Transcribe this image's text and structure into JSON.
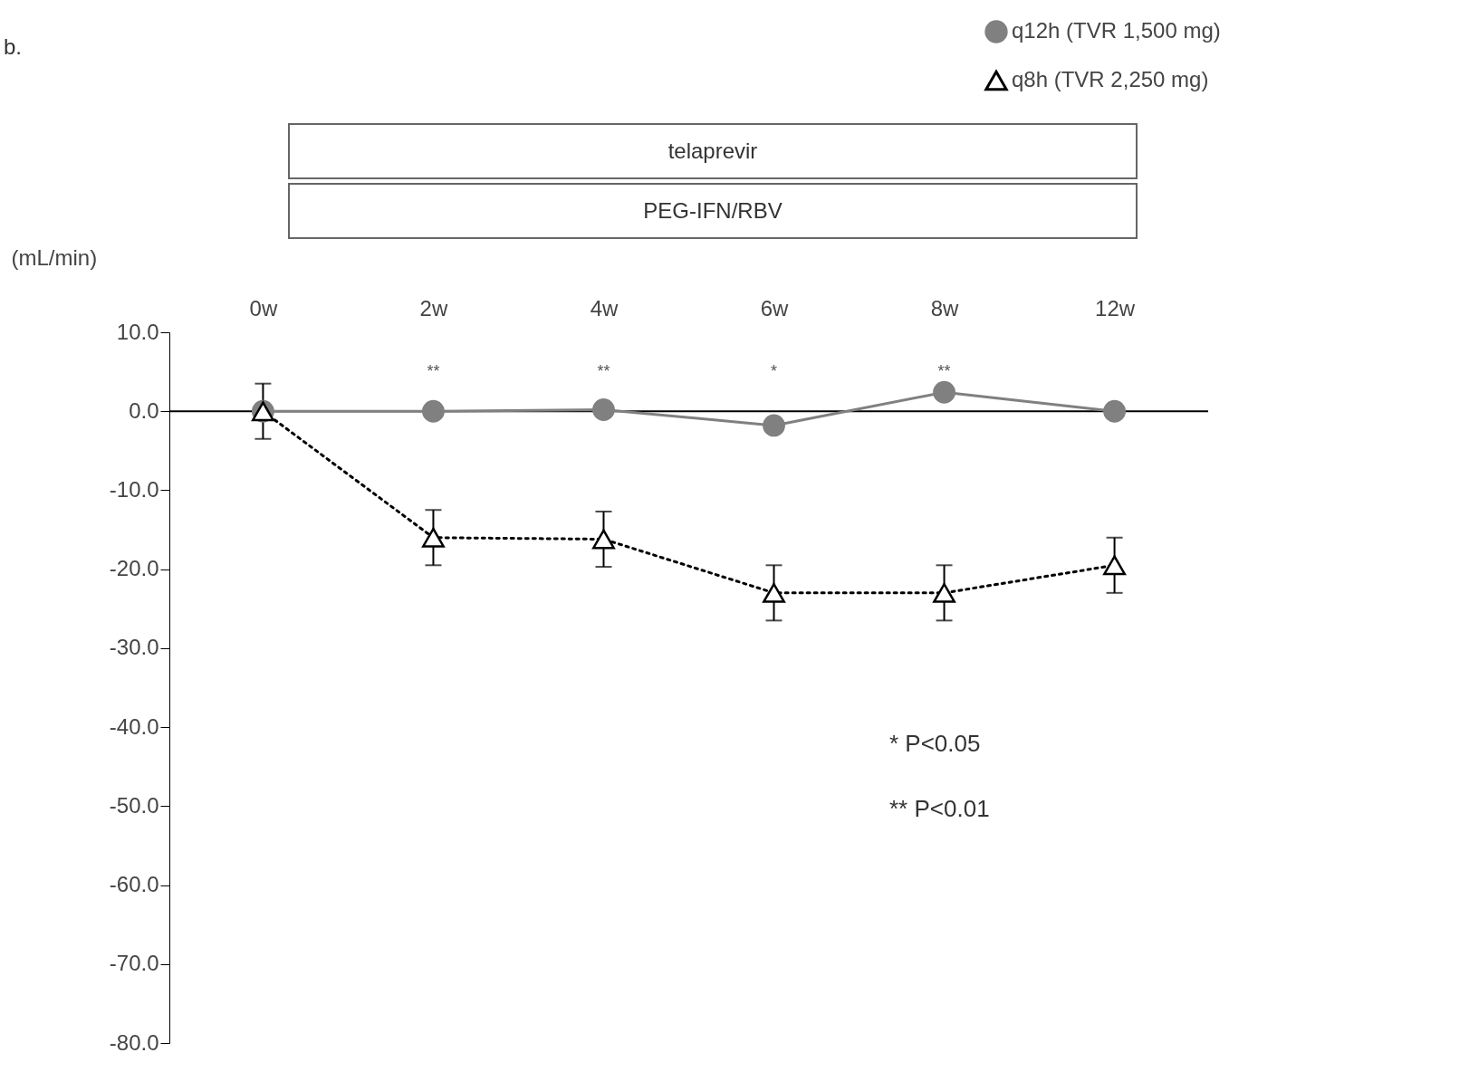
{
  "chart_data": {
    "type": "line",
    "ylabel": "(mL/min)",
    "categories": [
      "0w",
      "2w",
      "4w",
      "6w",
      "8w",
      "12w"
    ],
    "ylim": [
      -80,
      10
    ],
    "yticks": [
      {
        "value": 10,
        "label": "10.0"
      },
      {
        "value": 0,
        "label": "0.0"
      },
      {
        "value": -10,
        "label": "-10.0"
      },
      {
        "value": -20,
        "label": "-20.0"
      },
      {
        "value": -30,
        "label": "-30.0"
      },
      {
        "value": -40,
        "label": "-40.0"
      },
      {
        "value": -50,
        "label": "-50.0"
      },
      {
        "value": -60,
        "label": "-60.0"
      },
      {
        "value": -70,
        "label": "-70.0"
      },
      {
        "value": -80,
        "label": "-80.0"
      }
    ],
    "series": [
      {
        "name": "q12h (TVR 1,500 mg)",
        "color": "#808080",
        "marker": "circle",
        "line_style": "solid",
        "values": [
          0,
          0,
          0.2,
          -1.8,
          2.4,
          0
        ],
        "errors": [
          3.5,
          null,
          null,
          null,
          null,
          null
        ]
      },
      {
        "name": "q8h (TVR 2,250 mg)",
        "color": "#000000",
        "marker": "triangle",
        "line_style": "dotted",
        "values": [
          0,
          -16,
          -16.2,
          -23,
          -23,
          -19.5
        ],
        "errors": [
          null,
          3.5,
          3.5,
          3.5,
          3.5,
          3.5
        ]
      }
    ],
    "ref_lines": [
      {
        "axis": "y",
        "value": 0,
        "color": "#000000"
      }
    ],
    "annotations": [
      "b.",
      "telaprevir",
      "PEG-IFN/RBV",
      "* P<0.05",
      "** P<0.01",
      "**",
      "**",
      "*",
      "**"
    ],
    "legend": "top right",
    "grid": false
  }
}
